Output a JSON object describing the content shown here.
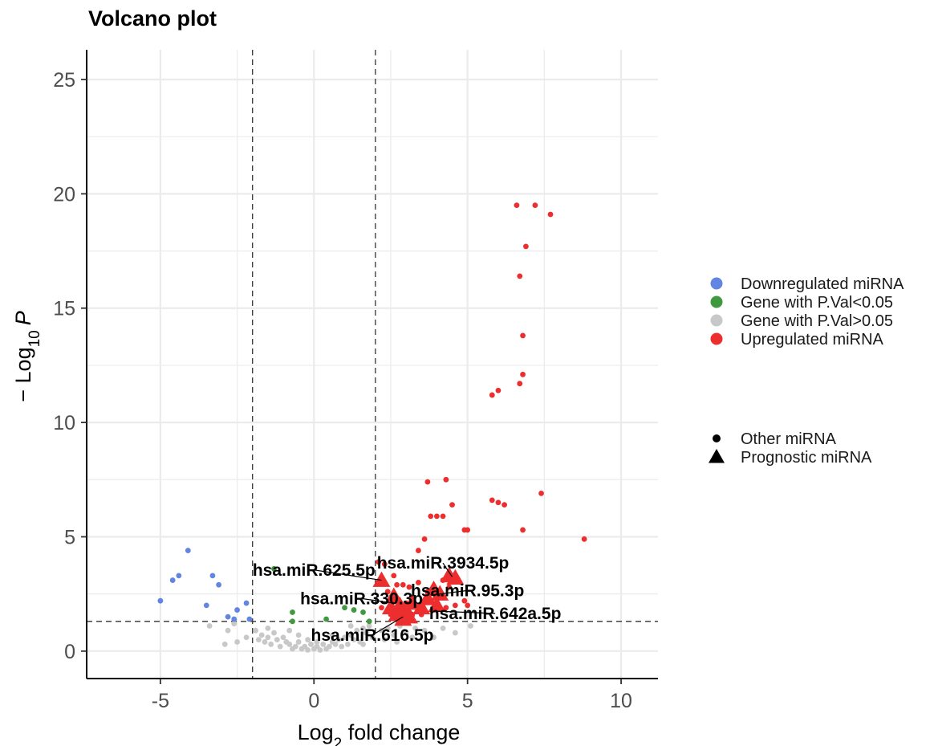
{
  "chart_data": {
    "type": "scatter",
    "title": "Volcano plot",
    "xlabel_pre": "Log",
    "xlabel_sub": "2",
    "xlabel_post": " fold change",
    "ylabel_pre": "− Log",
    "ylabel_sub": "10",
    "ylabel_post": "P",
    "xlim": [
      -7.4,
      11.2
    ],
    "ylim": [
      -1.2,
      26.3
    ],
    "x_ticks": [
      -5,
      0,
      5,
      10
    ],
    "x_tick_labels": [
      "-5",
      "0",
      "5",
      "10"
    ],
    "y_ticks": [
      0,
      5,
      10,
      15,
      20,
      25
    ],
    "y_tick_labels": [
      "0",
      "5",
      "10",
      "15",
      "20",
      "25"
    ],
    "grid": true,
    "fc_cutoff": [
      -2,
      2
    ],
    "p_cutoff": 1.3,
    "legend_position": "right",
    "colors": {
      "down": "#6185e0",
      "sig": "#3f9a3f",
      "ns": "#c8c8c8",
      "up": "#ec2e2e",
      "grid": "#ebebeb",
      "text": "#000000"
    },
    "color_legend": [
      {
        "label": "Downregulated miRNA",
        "color": "#6185e0"
      },
      {
        "label": "Gene with P.Val<0.05",
        "color": "#3f9a3f"
      },
      {
        "label": "Gene with P.Val>0.05",
        "color": "#c8c8c8"
      },
      {
        "label": "Upregulated miRNA",
        "color": "#ec2e2e"
      }
    ],
    "shape_legend": [
      {
        "label": "Other miRNA",
        "shape": "circle"
      },
      {
        "label": "Prognostic miRNA",
        "shape": "triangle"
      }
    ],
    "series": [
      {
        "group": "ns",
        "points": [
          [
            -2.9,
            0.3
          ],
          [
            -2.5,
            0.4
          ],
          [
            -2.2,
            0.6
          ],
          [
            -1.9,
            0.9
          ],
          [
            -1.8,
            0.5
          ],
          [
            -1.7,
            0.7
          ],
          [
            -1.6,
            0.4
          ],
          [
            -1.5,
            0.6
          ],
          [
            -1.4,
            0.3
          ],
          [
            -1.3,
            0.8
          ],
          [
            -1.2,
            0.5
          ],
          [
            -1.1,
            0.2
          ],
          [
            -1.0,
            0.6
          ],
          [
            -0.9,
            0.4
          ],
          [
            -0.8,
            0.3
          ],
          [
            -0.7,
            0.1
          ],
          [
            -0.6,
            0.2
          ],
          [
            -0.5,
            0.4
          ],
          [
            -0.4,
            0.1
          ],
          [
            -0.3,
            0.2
          ],
          [
            -0.2,
            0.05
          ],
          [
            -0.1,
            0.3
          ],
          [
            0.0,
            0.1
          ],
          [
            0.1,
            0.2
          ],
          [
            0.2,
            0.05
          ],
          [
            0.3,
            0.3
          ],
          [
            0.4,
            0.1
          ],
          [
            0.5,
            0.2
          ],
          [
            0.6,
            0.4
          ],
          [
            0.7,
            0.3
          ],
          [
            0.8,
            0.5
          ],
          [
            0.9,
            0.2
          ],
          [
            1.0,
            0.6
          ],
          [
            1.1,
            0.3
          ],
          [
            1.2,
            0.7
          ],
          [
            1.3,
            0.5
          ],
          [
            1.4,
            0.9
          ],
          [
            1.5,
            0.4
          ],
          [
            1.6,
            1.0
          ],
          [
            1.7,
            0.8
          ],
          [
            1.8,
            1.1
          ],
          [
            1.9,
            0.6
          ],
          [
            -1.5,
            1.0
          ],
          [
            -0.2,
            0.5
          ],
          [
            0.6,
            0.7
          ],
          [
            1.2,
            1.1
          ],
          [
            1.6,
            0.3
          ],
          [
            -0.8,
            0.9
          ],
          [
            0.1,
            0.4
          ],
          [
            -0.5,
            0.7
          ],
          [
            2.2,
            0.9
          ],
          [
            2.4,
            1.0
          ],
          [
            2.6,
            0.7
          ],
          [
            2.8,
            1.1
          ],
          [
            3.0,
            0.8
          ],
          [
            3.3,
            1.0
          ],
          [
            3.6,
            0.9
          ],
          [
            3.9,
            0.6
          ],
          [
            4.2,
            1.0
          ],
          [
            4.6,
            0.8
          ],
          [
            5.1,
            1.1
          ],
          [
            -3.4,
            1.1
          ],
          [
            -2.8,
            0.9
          ],
          [
            -2.6,
            1.2
          ],
          [
            2.3,
            0.5
          ],
          [
            2.7,
            0.4
          ],
          [
            3.2,
            0.6
          ]
        ]
      },
      {
        "group": "sig",
        "points": [
          [
            -1.3,
            3.6
          ],
          [
            -0.7,
            1.7
          ],
          [
            -0.7,
            1.3
          ],
          [
            0.4,
            1.4
          ],
          [
            1.0,
            1.9
          ],
          [
            1.3,
            1.8
          ],
          [
            1.6,
            1.7
          ],
          [
            1.8,
            1.3
          ]
        ]
      },
      {
        "group": "down",
        "points": [
          [
            -5.0,
            2.2
          ],
          [
            -4.6,
            3.1
          ],
          [
            -4.4,
            3.3
          ],
          [
            -4.1,
            4.4
          ],
          [
            -3.5,
            2.0
          ],
          [
            -3.3,
            3.3
          ],
          [
            -3.1,
            2.9
          ],
          [
            -2.8,
            1.5
          ],
          [
            -2.6,
            1.4
          ],
          [
            -2.5,
            1.8
          ],
          [
            -2.2,
            2.1
          ],
          [
            -2.1,
            1.4
          ]
        ]
      },
      {
        "group": "up",
        "points": [
          [
            2.1,
            3.9
          ],
          [
            2.3,
            3.8
          ],
          [
            2.4,
            2.6
          ],
          [
            2.6,
            3.3
          ],
          [
            2.7,
            2.9
          ],
          [
            2.9,
            2.9
          ],
          [
            3.1,
            2.8
          ],
          [
            3.4,
            3.0
          ],
          [
            3.6,
            2.2
          ],
          [
            3.7,
            2.6
          ],
          [
            3.9,
            2.6
          ],
          [
            4.2,
            3.1
          ],
          [
            4.4,
            2.8
          ],
          [
            4.6,
            2.0
          ],
          [
            4.9,
            2.2
          ],
          [
            5.0,
            2.0
          ],
          [
            2.5,
            1.6
          ],
          [
            2.8,
            1.5
          ],
          [
            3.2,
            1.6
          ],
          [
            3.5,
            1.6
          ],
          [
            3.9,
            1.8
          ],
          [
            4.3,
            1.9
          ],
          [
            3.4,
            4.4
          ],
          [
            3.6,
            4.9
          ],
          [
            3.7,
            7.4
          ],
          [
            3.8,
            5.9
          ],
          [
            4.0,
            5.9
          ],
          [
            4.2,
            5.9
          ],
          [
            4.3,
            7.5
          ],
          [
            4.5,
            6.4
          ],
          [
            4.9,
            5.3
          ],
          [
            5.0,
            5.3
          ],
          [
            5.8,
            6.6
          ],
          [
            6.0,
            6.5
          ],
          [
            6.2,
            6.4
          ],
          [
            6.8,
            5.3
          ],
          [
            7.4,
            6.9
          ],
          [
            8.8,
            4.9
          ],
          [
            5.8,
            11.2
          ],
          [
            6.0,
            11.4
          ],
          [
            6.7,
            11.7
          ],
          [
            6.8,
            12.1
          ],
          [
            6.8,
            13.8
          ],
          [
            6.7,
            16.4
          ],
          [
            6.9,
            17.7
          ],
          [
            6.6,
            19.5
          ],
          [
            7.2,
            19.5
          ],
          [
            7.7,
            19.1
          ],
          [
            2.2,
            1.9
          ],
          [
            3.0,
            2.1
          ]
        ]
      },
      {
        "group": "up-prognostic",
        "points": [
          [
            2.2,
            3.1
          ],
          [
            2.6,
            2.4
          ],
          [
            2.8,
            2.0
          ],
          [
            3.0,
            1.8
          ],
          [
            3.2,
            2.1
          ],
          [
            2.5,
            1.9
          ],
          [
            2.7,
            1.6
          ],
          [
            3.1,
            1.5
          ],
          [
            2.9,
            1.4
          ],
          [
            3.5,
            1.9
          ],
          [
            3.7,
            2.3
          ],
          [
            3.9,
            2.7
          ],
          [
            4.1,
            2.5
          ],
          [
            4.4,
            3.3
          ],
          [
            4.6,
            3.2
          ],
          [
            4.0,
            2.0
          ]
        ]
      }
    ],
    "labels": [
      {
        "text": "hsa.miR.625.5p",
        "x": 2.2,
        "y": 3.1,
        "tx": 0.0,
        "ty": 3.55
      },
      {
        "text": "hsa.miR.3934.5p",
        "x": 4.5,
        "y": 3.25,
        "tx": 4.2,
        "ty": 3.85
      },
      {
        "text": "hsa.miR.95.3p",
        "x": 3.8,
        "y": 2.45,
        "tx": 5.0,
        "ty": 2.65
      },
      {
        "text": "hsa.miR.330.3p",
        "x": 2.6,
        "y": 2.1,
        "tx": 1.55,
        "ty": 2.3
      },
      {
        "text": "hsa.miR.642a.5p",
        "x": 3.9,
        "y": 1.75,
        "tx": 5.9,
        "ty": 1.65
      },
      {
        "text": "hsa.miR.616.5p",
        "x": 2.9,
        "y": 1.5,
        "tx": 1.9,
        "ty": 0.7
      }
    ]
  }
}
